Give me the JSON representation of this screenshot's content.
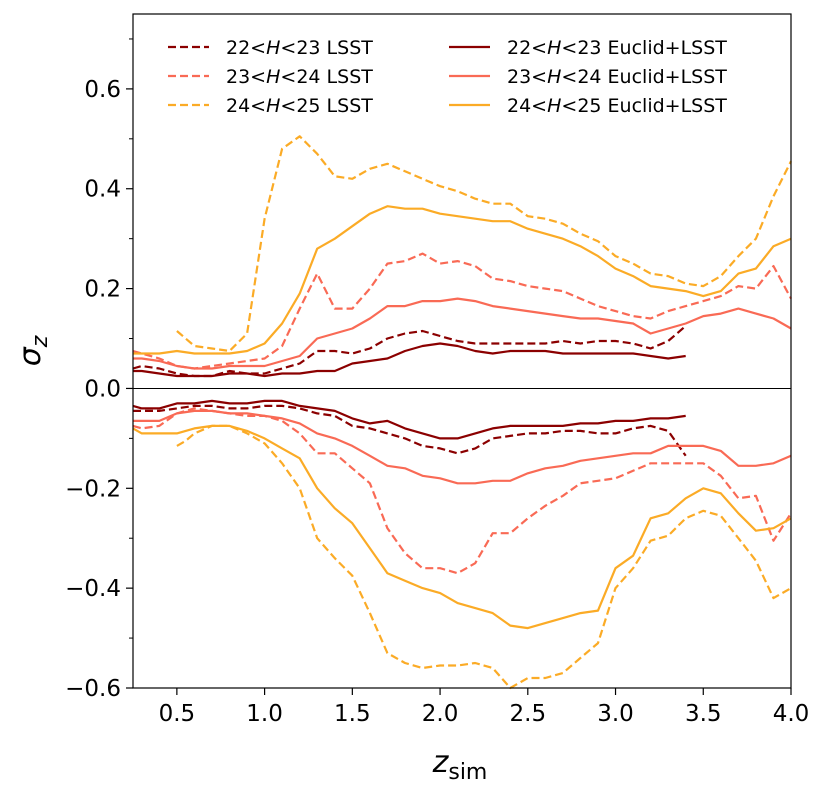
{
  "chart_data": {
    "type": "line",
    "title": "",
    "xlabel": "z",
    "xlabel_sub": "sim",
    "ylabel": "σ",
    "ylabel_sub": "z",
    "xlim": [
      0.25,
      4.0
    ],
    "ylim": [
      -0.6,
      0.75
    ],
    "x_ticks": [
      {
        "v": 0.5,
        "label": "0.5"
      },
      {
        "v": 1.0,
        "label": "1.0"
      },
      {
        "v": 1.5,
        "label": "1.5"
      },
      {
        "v": 2.0,
        "label": "2.0"
      },
      {
        "v": 2.5,
        "label": "2.5"
      },
      {
        "v": 3.0,
        "label": "3.0"
      },
      {
        "v": 3.5,
        "label": "3.5"
      },
      {
        "v": 4.0,
        "label": "4.0"
      }
    ],
    "y_ticks": [
      {
        "v": 0.6,
        "label": "0.6"
      },
      {
        "v": 0.4,
        "label": "0.4"
      },
      {
        "v": 0.2,
        "label": "0.2"
      },
      {
        "v": 0.0,
        "label": "0.0"
      },
      {
        "v": -0.2,
        "label": "−0.2"
      },
      {
        "v": -0.4,
        "label": "−0.4"
      },
      {
        "v": -0.6,
        "label": "−0.6"
      }
    ],
    "legend_position": "top",
    "series": [
      {
        "name": "22<H<23 LSST",
        "legend_prefix": "22<",
        "legend_var": "H",
        "legend_suffix": "<23 LSST",
        "color": "#8b0000",
        "dash": true,
        "upper": {
          "x": [
            0.25,
            0.3,
            0.4,
            0.5,
            0.6,
            0.7,
            0.8,
            0.9,
            1.0,
            1.1,
            1.2,
            1.3,
            1.4,
            1.5,
            1.6,
            1.7,
            1.8,
            1.9,
            2.0,
            2.1,
            2.2,
            2.3,
            2.4,
            2.5,
            2.6,
            2.7,
            2.8,
            2.9,
            3.0,
            3.1,
            3.2,
            3.3,
            3.4
          ],
          "y": [
            0.04,
            0.045,
            0.04,
            0.03,
            0.025,
            0.025,
            0.035,
            0.03,
            0.03,
            0.04,
            0.05,
            0.075,
            0.075,
            0.07,
            0.08,
            0.1,
            0.11,
            0.115,
            0.105,
            0.095,
            0.09,
            0.09,
            0.09,
            0.09,
            0.09,
            0.095,
            0.09,
            0.095,
            0.095,
            0.09,
            0.08,
            0.095,
            0.125
          ]
        },
        "lower": {
          "x": [
            0.25,
            0.3,
            0.4,
            0.5,
            0.6,
            0.7,
            0.8,
            0.9,
            1.0,
            1.1,
            1.2,
            1.3,
            1.4,
            1.5,
            1.6,
            1.7,
            1.8,
            1.9,
            2.0,
            2.1,
            2.2,
            2.3,
            2.4,
            2.5,
            2.6,
            2.7,
            2.8,
            2.9,
            3.0,
            3.1,
            3.2,
            3.3,
            3.4
          ],
          "y": [
            -0.045,
            -0.045,
            -0.045,
            -0.04,
            -0.035,
            -0.035,
            -0.04,
            -0.04,
            -0.035,
            -0.035,
            -0.04,
            -0.05,
            -0.055,
            -0.075,
            -0.08,
            -0.09,
            -0.1,
            -0.115,
            -0.12,
            -0.13,
            -0.12,
            -0.1,
            -0.095,
            -0.09,
            -0.09,
            -0.085,
            -0.085,
            -0.09,
            -0.09,
            -0.08,
            -0.075,
            -0.085,
            -0.135
          ]
        }
      },
      {
        "name": "23<H<24 LSST",
        "legend_prefix": "23<",
        "legend_var": "H",
        "legend_suffix": "<24 LSST",
        "color": "#f96a55",
        "dash": true,
        "upper": {
          "x": [
            0.25,
            0.3,
            0.4,
            0.5,
            0.6,
            0.7,
            0.8,
            0.9,
            1.0,
            1.1,
            1.2,
            1.3,
            1.4,
            1.5,
            1.6,
            1.7,
            1.8,
            1.9,
            2.0,
            2.1,
            2.2,
            2.3,
            2.4,
            2.5,
            2.6,
            2.7,
            2.8,
            2.9,
            3.0,
            3.1,
            3.2,
            3.3,
            3.4,
            3.5,
            3.6,
            3.7,
            3.8,
            3.9,
            4.0
          ],
          "y": [
            0.075,
            0.07,
            0.06,
            0.045,
            0.04,
            0.045,
            0.05,
            0.055,
            0.06,
            0.085,
            0.16,
            0.23,
            0.16,
            0.16,
            0.2,
            0.25,
            0.255,
            0.27,
            0.25,
            0.255,
            0.245,
            0.22,
            0.215,
            0.205,
            0.2,
            0.195,
            0.18,
            0.165,
            0.155,
            0.145,
            0.14,
            0.155,
            0.165,
            0.175,
            0.185,
            0.205,
            0.2,
            0.245,
            0.18
          ]
        },
        "lower": {
          "x": [
            0.25,
            0.3,
            0.4,
            0.5,
            0.6,
            0.7,
            0.8,
            0.9,
            1.0,
            1.1,
            1.2,
            1.3,
            1.4,
            1.5,
            1.6,
            1.7,
            1.8,
            1.9,
            2.0,
            2.1,
            2.2,
            2.3,
            2.4,
            2.5,
            2.6,
            2.7,
            2.8,
            2.9,
            3.0,
            3.1,
            3.2,
            3.3,
            3.4,
            3.5,
            3.6,
            3.7,
            3.8,
            3.9,
            4.0
          ],
          "y": [
            -0.075,
            -0.08,
            -0.075,
            -0.05,
            -0.04,
            -0.045,
            -0.05,
            -0.055,
            -0.055,
            -0.065,
            -0.09,
            -0.13,
            -0.13,
            -0.16,
            -0.19,
            -0.28,
            -0.33,
            -0.36,
            -0.36,
            -0.37,
            -0.35,
            -0.29,
            -0.29,
            -0.26,
            -0.235,
            -0.215,
            -0.19,
            -0.185,
            -0.18,
            -0.165,
            -0.15,
            -0.15,
            -0.15,
            -0.15,
            -0.175,
            -0.22,
            -0.215,
            -0.305,
            -0.25
          ]
        }
      },
      {
        "name": "24<H<25 LSST",
        "legend_prefix": "24<",
        "legend_var": "H",
        "legend_suffix": "<25 LSST",
        "color": "#fbab26",
        "dash": true,
        "upper": {
          "x": [
            0.5,
            0.55,
            0.6,
            0.7,
            0.8,
            0.9,
            1.0,
            1.1,
            1.2,
            1.3,
            1.4,
            1.5,
            1.6,
            1.7,
            1.8,
            1.9,
            2.0,
            2.1,
            2.2,
            2.3,
            2.4,
            2.5,
            2.6,
            2.7,
            2.8,
            2.9,
            3.0,
            3.1,
            3.2,
            3.3,
            3.4,
            3.5,
            3.6,
            3.7,
            3.8,
            3.9,
            4.0
          ],
          "y": [
            0.115,
            0.1,
            0.085,
            0.08,
            0.075,
            0.11,
            0.34,
            0.48,
            0.505,
            0.47,
            0.425,
            0.42,
            0.44,
            0.45,
            0.435,
            0.42,
            0.405,
            0.395,
            0.38,
            0.37,
            0.37,
            0.345,
            0.34,
            0.33,
            0.31,
            0.295,
            0.265,
            0.25,
            0.23,
            0.225,
            0.21,
            0.205,
            0.225,
            0.265,
            0.3,
            0.385,
            0.455
          ]
        },
        "lower": {
          "x": [
            0.5,
            0.55,
            0.6,
            0.7,
            0.8,
            0.9,
            1.0,
            1.1,
            1.2,
            1.3,
            1.4,
            1.5,
            1.6,
            1.7,
            1.8,
            1.9,
            2.0,
            2.1,
            2.2,
            2.3,
            2.4,
            2.5,
            2.6,
            2.7,
            2.8,
            2.9,
            3.0,
            3.1,
            3.2,
            3.3,
            3.4,
            3.5,
            3.6,
            3.7,
            3.8,
            3.9,
            4.0
          ],
          "y": [
            -0.115,
            -0.105,
            -0.09,
            -0.075,
            -0.075,
            -0.09,
            -0.11,
            -0.15,
            -0.2,
            -0.3,
            -0.34,
            -0.375,
            -0.45,
            -0.53,
            -0.55,
            -0.56,
            -0.555,
            -0.555,
            -0.55,
            -0.56,
            -0.6,
            -0.58,
            -0.58,
            -0.57,
            -0.54,
            -0.51,
            -0.4,
            -0.36,
            -0.305,
            -0.295,
            -0.26,
            -0.245,
            -0.255,
            -0.3,
            -0.345,
            -0.42,
            -0.4
          ]
        }
      },
      {
        "name": "22<H<23 Euclid+LSST",
        "legend_prefix": "22<",
        "legend_var": "H",
        "legend_suffix": "<23 Euclid+LSST",
        "color": "#8b0000",
        "dash": false,
        "upper": {
          "x": [
            0.25,
            0.3,
            0.4,
            0.5,
            0.6,
            0.7,
            0.8,
            0.9,
            1.0,
            1.1,
            1.2,
            1.3,
            1.4,
            1.5,
            1.6,
            1.7,
            1.8,
            1.9,
            2.0,
            2.1,
            2.2,
            2.3,
            2.4,
            2.5,
            2.6,
            2.7,
            2.8,
            2.9,
            3.0,
            3.1,
            3.2,
            3.3,
            3.4
          ],
          "y": [
            0.035,
            0.035,
            0.03,
            0.025,
            0.025,
            0.025,
            0.03,
            0.03,
            0.025,
            0.03,
            0.03,
            0.035,
            0.035,
            0.05,
            0.055,
            0.06,
            0.075,
            0.085,
            0.09,
            0.085,
            0.075,
            0.07,
            0.075,
            0.075,
            0.075,
            0.07,
            0.07,
            0.07,
            0.07,
            0.07,
            0.065,
            0.06,
            0.065
          ]
        },
        "lower": {
          "x": [
            0.25,
            0.3,
            0.4,
            0.5,
            0.6,
            0.7,
            0.8,
            0.9,
            1.0,
            1.1,
            1.2,
            1.3,
            1.4,
            1.5,
            1.6,
            1.7,
            1.8,
            1.9,
            2.0,
            2.1,
            2.2,
            2.3,
            2.4,
            2.5,
            2.6,
            2.7,
            2.8,
            2.9,
            3.0,
            3.1,
            3.2,
            3.3,
            3.4
          ],
          "y": [
            -0.035,
            -0.04,
            -0.04,
            -0.03,
            -0.03,
            -0.025,
            -0.03,
            -0.03,
            -0.025,
            -0.025,
            -0.035,
            -0.04,
            -0.045,
            -0.06,
            -0.07,
            -0.065,
            -0.08,
            -0.09,
            -0.1,
            -0.1,
            -0.09,
            -0.08,
            -0.075,
            -0.075,
            -0.075,
            -0.075,
            -0.07,
            -0.07,
            -0.065,
            -0.065,
            -0.06,
            -0.06,
            -0.055
          ]
        }
      },
      {
        "name": "23<H<24 Euclid+LSST",
        "legend_prefix": "23<",
        "legend_var": "H",
        "legend_suffix": "<24 Euclid+LSST",
        "color": "#f96a55",
        "dash": false,
        "upper": {
          "x": [
            0.25,
            0.3,
            0.4,
            0.5,
            0.6,
            0.7,
            0.8,
            0.9,
            1.0,
            1.1,
            1.2,
            1.3,
            1.4,
            1.5,
            1.6,
            1.7,
            1.8,
            1.9,
            2.0,
            2.1,
            2.2,
            2.3,
            2.4,
            2.5,
            2.6,
            2.7,
            2.8,
            2.9,
            3.0,
            3.1,
            3.2,
            3.3,
            3.4,
            3.5,
            3.6,
            3.7,
            3.8,
            3.9,
            4.0
          ],
          "y": [
            0.06,
            0.06,
            0.055,
            0.045,
            0.04,
            0.04,
            0.045,
            0.045,
            0.045,
            0.055,
            0.065,
            0.1,
            0.11,
            0.12,
            0.14,
            0.165,
            0.165,
            0.175,
            0.175,
            0.18,
            0.175,
            0.165,
            0.16,
            0.155,
            0.15,
            0.145,
            0.14,
            0.14,
            0.135,
            0.13,
            0.11,
            0.12,
            0.13,
            0.145,
            0.15,
            0.16,
            0.15,
            0.14,
            0.12
          ]
        },
        "lower": {
          "x": [
            0.25,
            0.3,
            0.4,
            0.5,
            0.6,
            0.7,
            0.8,
            0.9,
            1.0,
            1.1,
            1.2,
            1.3,
            1.4,
            1.5,
            1.6,
            1.7,
            1.8,
            1.9,
            2.0,
            2.1,
            2.2,
            2.3,
            2.4,
            2.5,
            2.6,
            2.7,
            2.8,
            2.9,
            3.0,
            3.1,
            3.2,
            3.3,
            3.4,
            3.5,
            3.6,
            3.7,
            3.8,
            3.9,
            4.0
          ],
          "y": [
            -0.065,
            -0.065,
            -0.065,
            -0.05,
            -0.045,
            -0.045,
            -0.05,
            -0.05,
            -0.055,
            -0.06,
            -0.07,
            -0.09,
            -0.1,
            -0.115,
            -0.135,
            -0.155,
            -0.16,
            -0.175,
            -0.18,
            -0.19,
            -0.19,
            -0.185,
            -0.185,
            -0.17,
            -0.16,
            -0.155,
            -0.145,
            -0.14,
            -0.135,
            -0.13,
            -0.13,
            -0.115,
            -0.115,
            -0.115,
            -0.125,
            -0.155,
            -0.155,
            -0.15,
            -0.135
          ]
        }
      },
      {
        "name": "24<H<25 Euclid+LSST",
        "legend_prefix": "24<",
        "legend_var": "H",
        "legend_suffix": "<25 Euclid+LSST",
        "color": "#fbab26",
        "dash": false,
        "upper": {
          "x": [
            0.25,
            0.3,
            0.4,
            0.5,
            0.6,
            0.7,
            0.8,
            0.9,
            1.0,
            1.1,
            1.2,
            1.3,
            1.4,
            1.5,
            1.6,
            1.7,
            1.8,
            1.9,
            2.0,
            2.1,
            2.2,
            2.3,
            2.4,
            2.5,
            2.6,
            2.7,
            2.8,
            2.9,
            3.0,
            3.1,
            3.2,
            3.3,
            3.4,
            3.5,
            3.6,
            3.7,
            3.8,
            3.9,
            4.0
          ],
          "y": [
            0.07,
            0.07,
            0.07,
            0.075,
            0.07,
            0.07,
            0.07,
            0.075,
            0.09,
            0.13,
            0.19,
            0.28,
            0.3,
            0.325,
            0.35,
            0.365,
            0.36,
            0.36,
            0.35,
            0.345,
            0.34,
            0.335,
            0.335,
            0.32,
            0.31,
            0.3,
            0.285,
            0.265,
            0.24,
            0.225,
            0.205,
            0.2,
            0.195,
            0.185,
            0.195,
            0.23,
            0.24,
            0.285,
            0.3
          ]
        },
        "lower": {
          "x": [
            0.25,
            0.3,
            0.4,
            0.5,
            0.6,
            0.7,
            0.8,
            0.9,
            1.0,
            1.1,
            1.2,
            1.3,
            1.4,
            1.5,
            1.6,
            1.7,
            1.8,
            1.9,
            2.0,
            2.1,
            2.2,
            2.3,
            2.4,
            2.5,
            2.6,
            2.7,
            2.8,
            2.9,
            3.0,
            3.1,
            3.2,
            3.3,
            3.4,
            3.5,
            3.6,
            3.7,
            3.8,
            3.9,
            4.0
          ],
          "y": [
            -0.08,
            -0.09,
            -0.09,
            -0.09,
            -0.08,
            -0.075,
            -0.075,
            -0.085,
            -0.1,
            -0.12,
            -0.14,
            -0.2,
            -0.24,
            -0.27,
            -0.32,
            -0.37,
            -0.385,
            -0.4,
            -0.41,
            -0.43,
            -0.44,
            -0.45,
            -0.475,
            -0.48,
            -0.47,
            -0.46,
            -0.45,
            -0.445,
            -0.36,
            -0.335,
            -0.26,
            -0.25,
            -0.22,
            -0.2,
            -0.21,
            -0.25,
            -0.285,
            -0.28,
            -0.26
          ]
        }
      }
    ]
  }
}
